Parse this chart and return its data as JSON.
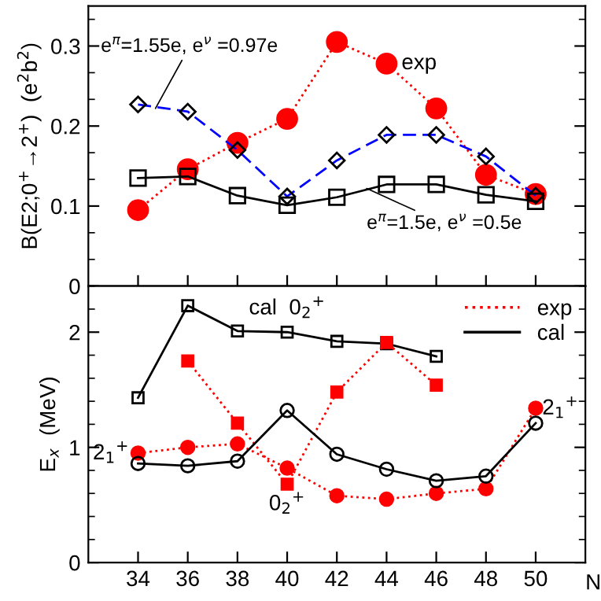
{
  "chart_data": [
    {
      "type": "line",
      "ylabel": "B(E2;0$^{+}$→2$^{+}$)  (e$^{2}$b$^{2}$)",
      "x": [
        34,
        36,
        38,
        40,
        42,
        44,
        46,
        48,
        50
      ],
      "xlim": [
        32,
        52
      ],
      "xticks": [
        34,
        36,
        38,
        40,
        42,
        44,
        46,
        48,
        50
      ],
      "ylim": [
        0,
        0.35
      ],
      "yticks": [
        0,
        0.1,
        0.2,
        0.3
      ],
      "tick_labels": "y",
      "grid": false,
      "series": [
        {
          "name": "exp",
          "color": "#ff0000",
          "marker": "circle",
          "line_style": "dotted",
          "values": [
            0.095,
            0.146,
            0.179,
            0.209,
            0.305,
            0.278,
            0.222,
            0.139,
            0.115
          ]
        },
        {
          "color": "#0000ff",
          "marker": "diamond",
          "line_style": "dashed",
          "values": [
            0.227,
            0.218,
            0.17,
            0.112,
            0.157,
            0.189,
            0.189,
            0.162,
            0.113
          ]
        },
        {
          "color": "#000000",
          "marker": "square",
          "line_style": "solid",
          "values": [
            0.135,
            0.137,
            0.113,
            0.101,
            0.111,
            0.127,
            0.127,
            0.114,
            0.106
          ]
        }
      ],
      "annotations": [
        {
          "text": "e$^{π}$=1.55e, e$^{ν}$ =0.97e",
          "x": 34.7,
          "y": 0.222
        },
        {
          "text": "e$^{π}$=1.5e, e$^{ν}$ =0.5e",
          "x": 43.2,
          "y": 0.122
        }
      ]
    },
    {
      "type": "line",
      "xlabel": "N",
      "ylabel": "E$_{x}$  (MeV)",
      "xlim": [
        32,
        52
      ],
      "xticks": [
        34,
        36,
        38,
        40,
        42,
        44,
        46,
        48,
        50
      ],
      "ylim": [
        0,
        2.4
      ],
      "yticks": [
        0,
        1,
        2
      ],
      "grid": false,
      "legend": "top right",
      "series": [
        {
          "x": [
            34,
            36,
            38,
            40,
            42,
            44,
            46
          ],
          "color": "#000000",
          "marker": "square",
          "line_style": "solid",
          "values": [
            1.43,
            2.23,
            2.01,
            2.0,
            1.92,
            1.9,
            1.79
          ]
        },
        {
          "x": [
            36,
            38,
            40,
            42,
            44,
            46
          ],
          "color": "#ff0000",
          "marker": "square",
          "line_style": "dotted",
          "values": [
            1.75,
            1.21,
            0.68,
            1.48,
            1.91,
            1.54
          ]
        },
        {
          "name": "exp",
          "x": [
            34,
            36,
            38,
            40,
            42,
            44,
            46,
            48,
            50
          ],
          "color": "#ff0000",
          "marker": "circle",
          "line_style": "dotted",
          "values": [
            0.95,
            1.0,
            1.03,
            0.82,
            0.58,
            0.55,
            0.6,
            0.64,
            1.34
          ]
        },
        {
          "name": "cal",
          "x": [
            34,
            36,
            38,
            40,
            42,
            44,
            46,
            48,
            50
          ],
          "color": "#000000",
          "marker": "circle",
          "line_style": "solid",
          "values": [
            0.86,
            0.84,
            0.88,
            1.32,
            0.94,
            0.81,
            0.71,
            0.75,
            1.21
          ]
        }
      ],
      "annotations": [
        {
          "text": "cal  0$_{2}$$^{+}$",
          "x": 40,
          "y": 2.0
        },
        {
          "text": "0$_{2}$$^{+}$",
          "x": 40,
          "y": 0.68
        },
        {
          "text": "2$_{1}$$^{+}$",
          "x": 34,
          "y": 0.95
        },
        {
          "text": "2$_{1}$$^{+}$",
          "x": 50,
          "y": 1.34
        }
      ]
    }
  ]
}
